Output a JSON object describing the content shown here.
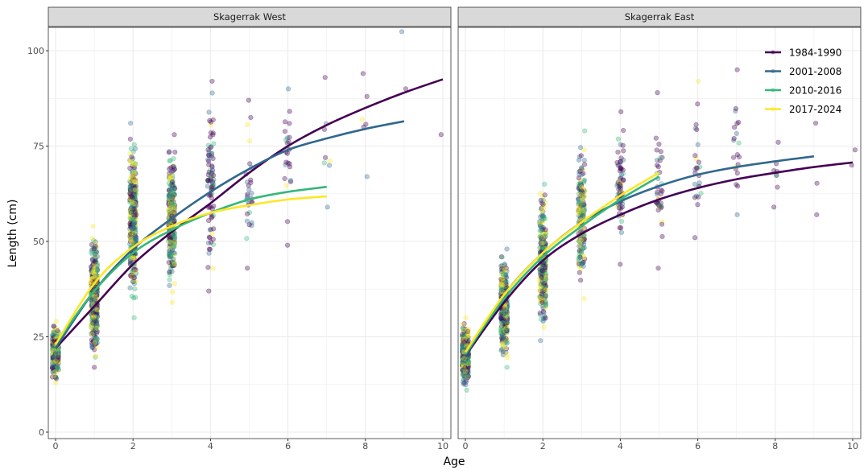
{
  "chart_data": {
    "type": "scatter",
    "xlabel": "Age",
    "ylabel": "Length (cm)",
    "xlim": [
      0,
      10
    ],
    "ylim": [
      0,
      105
    ],
    "x_ticks": [
      0,
      2,
      4,
      6,
      8,
      10
    ],
    "y_ticks": [
      0,
      25,
      50,
      75,
      100
    ],
    "grid": true,
    "legend_placement": "top-right",
    "series_names": [
      "1984-1990",
      "2001-2008",
      "2010-2016",
      "2017-2024"
    ],
    "colors": {
      "1984-1990": "#440154",
      "2001-2008": "#31688E",
      "2010-2016": "#35B779",
      "2017-2024": "#FDE725"
    },
    "panels": [
      {
        "title": "Skagerrak West",
        "fitted_curves": [
          {
            "name": "1984-1990",
            "x": [
              0,
              1,
              2,
              3,
              4,
              5,
              6,
              7,
              8,
              9,
              10
            ],
            "y": [
              22,
              33,
              44,
              52.5,
              60,
              68,
              75,
              80.5,
              85,
              89,
              92.5
            ]
          },
          {
            "name": "2001-2008",
            "x": [
              0,
              1,
              2,
              3,
              4,
              5,
              6,
              7,
              8,
              9
            ],
            "y": [
              22,
              37,
              48,
              56,
              63,
              69,
              74,
              77,
              79.5,
              81.5
            ]
          },
          {
            "name": "2010-2016",
            "x": [
              0,
              1,
              2,
              3,
              4,
              5,
              6,
              7
            ],
            "y": [
              23,
              37,
              47,
              53,
              57.5,
              61,
              63,
              64.3
            ]
          },
          {
            "name": "2017-2024",
            "x": [
              0,
              1,
              2,
              3,
              4,
              5,
              6,
              7
            ],
            "y": [
              23,
              39,
              48.5,
              54,
              57.5,
              59.5,
              61,
              61.8
            ]
          }
        ],
        "observations_by_age": [
          {
            "age": 0,
            "min": 13,
            "max": 29,
            "n": 300
          },
          {
            "age": 1,
            "min": 17,
            "max": 54,
            "n": 900
          },
          {
            "age": 2,
            "min": 30,
            "max": 81,
            "n": 700
          },
          {
            "age": 3,
            "min": 34,
            "max": 78,
            "n": 300
          },
          {
            "age": 4,
            "min": 37,
            "max": 92,
            "n": 90
          },
          {
            "age": 5,
            "min": 43,
            "max": 87,
            "n": 30
          },
          {
            "age": 6,
            "min": 49,
            "max": 90,
            "n": 25
          },
          {
            "age": 7,
            "min": 59,
            "max": 93,
            "n": 8
          },
          {
            "age": 8,
            "min": 67,
            "max": 94,
            "n": 6
          },
          {
            "age": 9,
            "min": 90,
            "max": 105,
            "n": 2
          },
          {
            "age": 10,
            "min": 78,
            "max": 79,
            "n": 1
          }
        ]
      },
      {
        "title": "Skagerrak East",
        "fitted_curves": [
          {
            "name": "1984-1990",
            "x": [
              0,
              1,
              2,
              3,
              4,
              5,
              6,
              7,
              8,
              9,
              10
            ],
            "y": [
              20,
              34,
              45,
              52,
              57,
              61,
              64,
              66.3,
              68,
              69.5,
              70.7
            ]
          },
          {
            "name": "2001-2008",
            "x": [
              0,
              1,
              2,
              3,
              4,
              5,
              6,
              7,
              8,
              9
            ],
            "y": [
              20,
              36,
              47,
              55,
              60.5,
              64.5,
              67.5,
              69.5,
              71,
              72.3
            ]
          },
          {
            "name": "2010-2016",
            "x": [
              0,
              1,
              2,
              3,
              4,
              5
            ],
            "y": [
              20.5,
              35,
              46,
              54,
              61,
              67
            ]
          },
          {
            "name": "2017-2024",
            "x": [
              0,
              1,
              2,
              3,
              4,
              5
            ],
            "y": [
              21,
              36,
              47,
              55,
              62,
              68
            ]
          }
        ],
        "observations_by_age": [
          {
            "age": 0,
            "min": 11,
            "max": 30,
            "n": 400
          },
          {
            "age": 1,
            "min": 17,
            "max": 48,
            "n": 500
          },
          {
            "age": 2,
            "min": 24,
            "max": 65,
            "n": 300
          },
          {
            "age": 3,
            "min": 35,
            "max": 79,
            "n": 200
          },
          {
            "age": 4,
            "min": 44,
            "max": 84,
            "n": 70
          },
          {
            "age": 5,
            "min": 43,
            "max": 89,
            "n": 40
          },
          {
            "age": 6,
            "min": 51,
            "max": 92,
            "n": 25
          },
          {
            "age": 7,
            "min": 57,
            "max": 95,
            "n": 20
          },
          {
            "age": 8,
            "min": 59,
            "max": 76,
            "n": 8
          },
          {
            "age": 9,
            "min": 57,
            "max": 81,
            "n": 3
          },
          {
            "age": 10,
            "min": 70,
            "max": 74,
            "n": 2
          }
        ]
      }
    ]
  }
}
